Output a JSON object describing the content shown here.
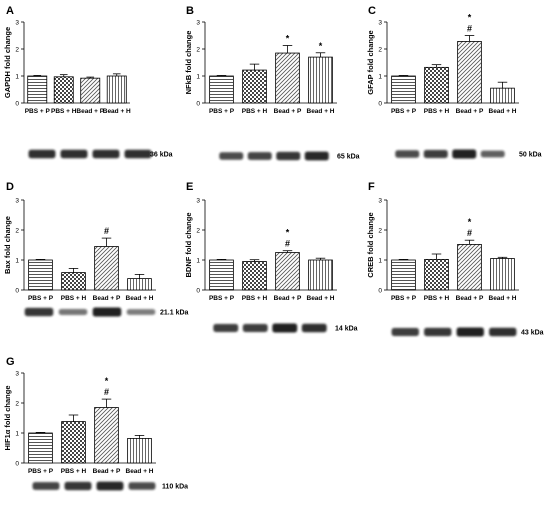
{
  "figure": {
    "patterns": [
      "hlines",
      "checker",
      "diagonal",
      "vlines"
    ],
    "colors": {
      "ink": "#000000",
      "band": "#141414",
      "background": "#ffffff"
    }
  },
  "chart_data": [
    {
      "id": "A",
      "type": "bar",
      "panel_label": "A",
      "ylabel": "GAPDH fold change",
      "categories": [
        "PBS + P",
        "PBS + H",
        "Bead + P",
        "Bead + H"
      ],
      "values": [
        1.0,
        0.97,
        0.92,
        1.0
      ],
      "errors": [
        0.02,
        0.08,
        0.04,
        0.08
      ],
      "marks": [
        [],
        [],
        [],
        []
      ],
      "ylim": [
        0,
        3
      ],
      "yticks": [
        "0",
        "1",
        "2",
        "3"
      ],
      "blot_label": "36 kDa",
      "band_intensity": [
        0.9,
        0.9,
        0.9,
        0.9
      ]
    },
    {
      "id": "B",
      "type": "bar",
      "panel_label": "B",
      "ylabel": "NFkB fold change",
      "categories": [
        "PBS + P",
        "PBS + H",
        "Bead + P",
        "Bead + H"
      ],
      "values": [
        1.0,
        1.22,
        1.85,
        1.7
      ],
      "errors": [
        0.02,
        0.22,
        0.28,
        0.16
      ],
      "marks": [
        [],
        [],
        [
          "*"
        ],
        [
          "*"
        ]
      ],
      "ylim": [
        0,
        3
      ],
      "yticks": [
        "0",
        "1",
        "2",
        "3"
      ],
      "blot_label": "65 kDa",
      "band_intensity": [
        0.7,
        0.75,
        0.85,
        0.95
      ]
    },
    {
      "id": "C",
      "type": "bar",
      "panel_label": "C",
      "ylabel": "GFAP fold change",
      "categories": [
        "PBS + P",
        "PBS + H",
        "Bead + P",
        "Bead + H"
      ],
      "values": [
        1.0,
        1.32,
        2.28,
        0.55
      ],
      "errors": [
        0.02,
        0.1,
        0.22,
        0.22
      ],
      "marks": [
        [],
        [],
        [
          "*",
          "#"
        ],
        []
      ],
      "ylim": [
        0,
        3
      ],
      "yticks": [
        "0",
        "1",
        "2",
        "3"
      ],
      "blot_label": "50 kDa",
      "band_intensity": [
        0.7,
        0.8,
        1.0,
        0.55
      ]
    },
    {
      "id": "D",
      "type": "bar",
      "panel_label": "D",
      "ylabel": "Bax fold change",
      "categories": [
        "PBS + P",
        "PBS + H",
        "Bead + P",
        "Bead + H"
      ],
      "values": [
        1.0,
        0.58,
        1.45,
        0.38
      ],
      "errors": [
        0.02,
        0.14,
        0.28,
        0.14
      ],
      "marks": [
        [],
        [],
        [
          "#"
        ],
        []
      ],
      "ylim": [
        0,
        3
      ],
      "yticks": [
        "0",
        "1",
        "2",
        "3"
      ],
      "blot_label": "21.1 kDa",
      "band_intensity": [
        0.85,
        0.4,
        1.0,
        0.35
      ]
    },
    {
      "id": "E",
      "type": "bar",
      "panel_label": "E",
      "ylabel": "BDNF fold change",
      "categories": [
        "PBS + P",
        "PBS + H",
        "Bead + P",
        "Bead + H"
      ],
      "values": [
        1.0,
        0.95,
        1.25,
        1.0
      ],
      "errors": [
        0.02,
        0.06,
        0.06,
        0.06
      ],
      "marks": [
        [],
        [],
        [
          "*",
          "#"
        ],
        []
      ],
      "ylim": [
        0,
        3
      ],
      "yticks": [
        "0",
        "1",
        "2",
        "3"
      ],
      "blot_label": "14 kDa",
      "band_intensity": [
        0.8,
        0.8,
        1.0,
        0.9
      ]
    },
    {
      "id": "F",
      "type": "bar",
      "panel_label": "F",
      "ylabel": "CREB fold change",
      "categories": [
        "PBS + P",
        "PBS + H",
        "Bead + P",
        "Bead + H"
      ],
      "values": [
        1.0,
        1.02,
        1.52,
        1.05
      ],
      "errors": [
        0.02,
        0.18,
        0.14,
        0.04
      ],
      "marks": [
        [],
        [],
        [
          "*",
          "#"
        ],
        []
      ],
      "ylim": [
        0,
        3
      ],
      "yticks": [
        "0",
        "1",
        "2",
        "3"
      ],
      "blot_label": "43 kDa",
      "band_intensity": [
        0.8,
        0.85,
        1.0,
        0.9
      ]
    },
    {
      "id": "G",
      "type": "bar",
      "panel_label": "G",
      "ylabel": "HIF1α fold change",
      "categories": [
        "PBS + P",
        "PBS + H",
        "Bead + P",
        "Bead + H"
      ],
      "values": [
        1.0,
        1.38,
        1.85,
        0.82
      ],
      "errors": [
        0.02,
        0.22,
        0.28,
        0.1
      ],
      "marks": [
        [],
        [],
        [
          "*",
          "#"
        ],
        []
      ],
      "ylim": [
        0,
        3
      ],
      "yticks": [
        "0",
        "1",
        "2",
        "3"
      ],
      "blot_label": "110 kDa",
      "band_intensity": [
        0.75,
        0.85,
        0.95,
        0.7
      ]
    }
  ]
}
